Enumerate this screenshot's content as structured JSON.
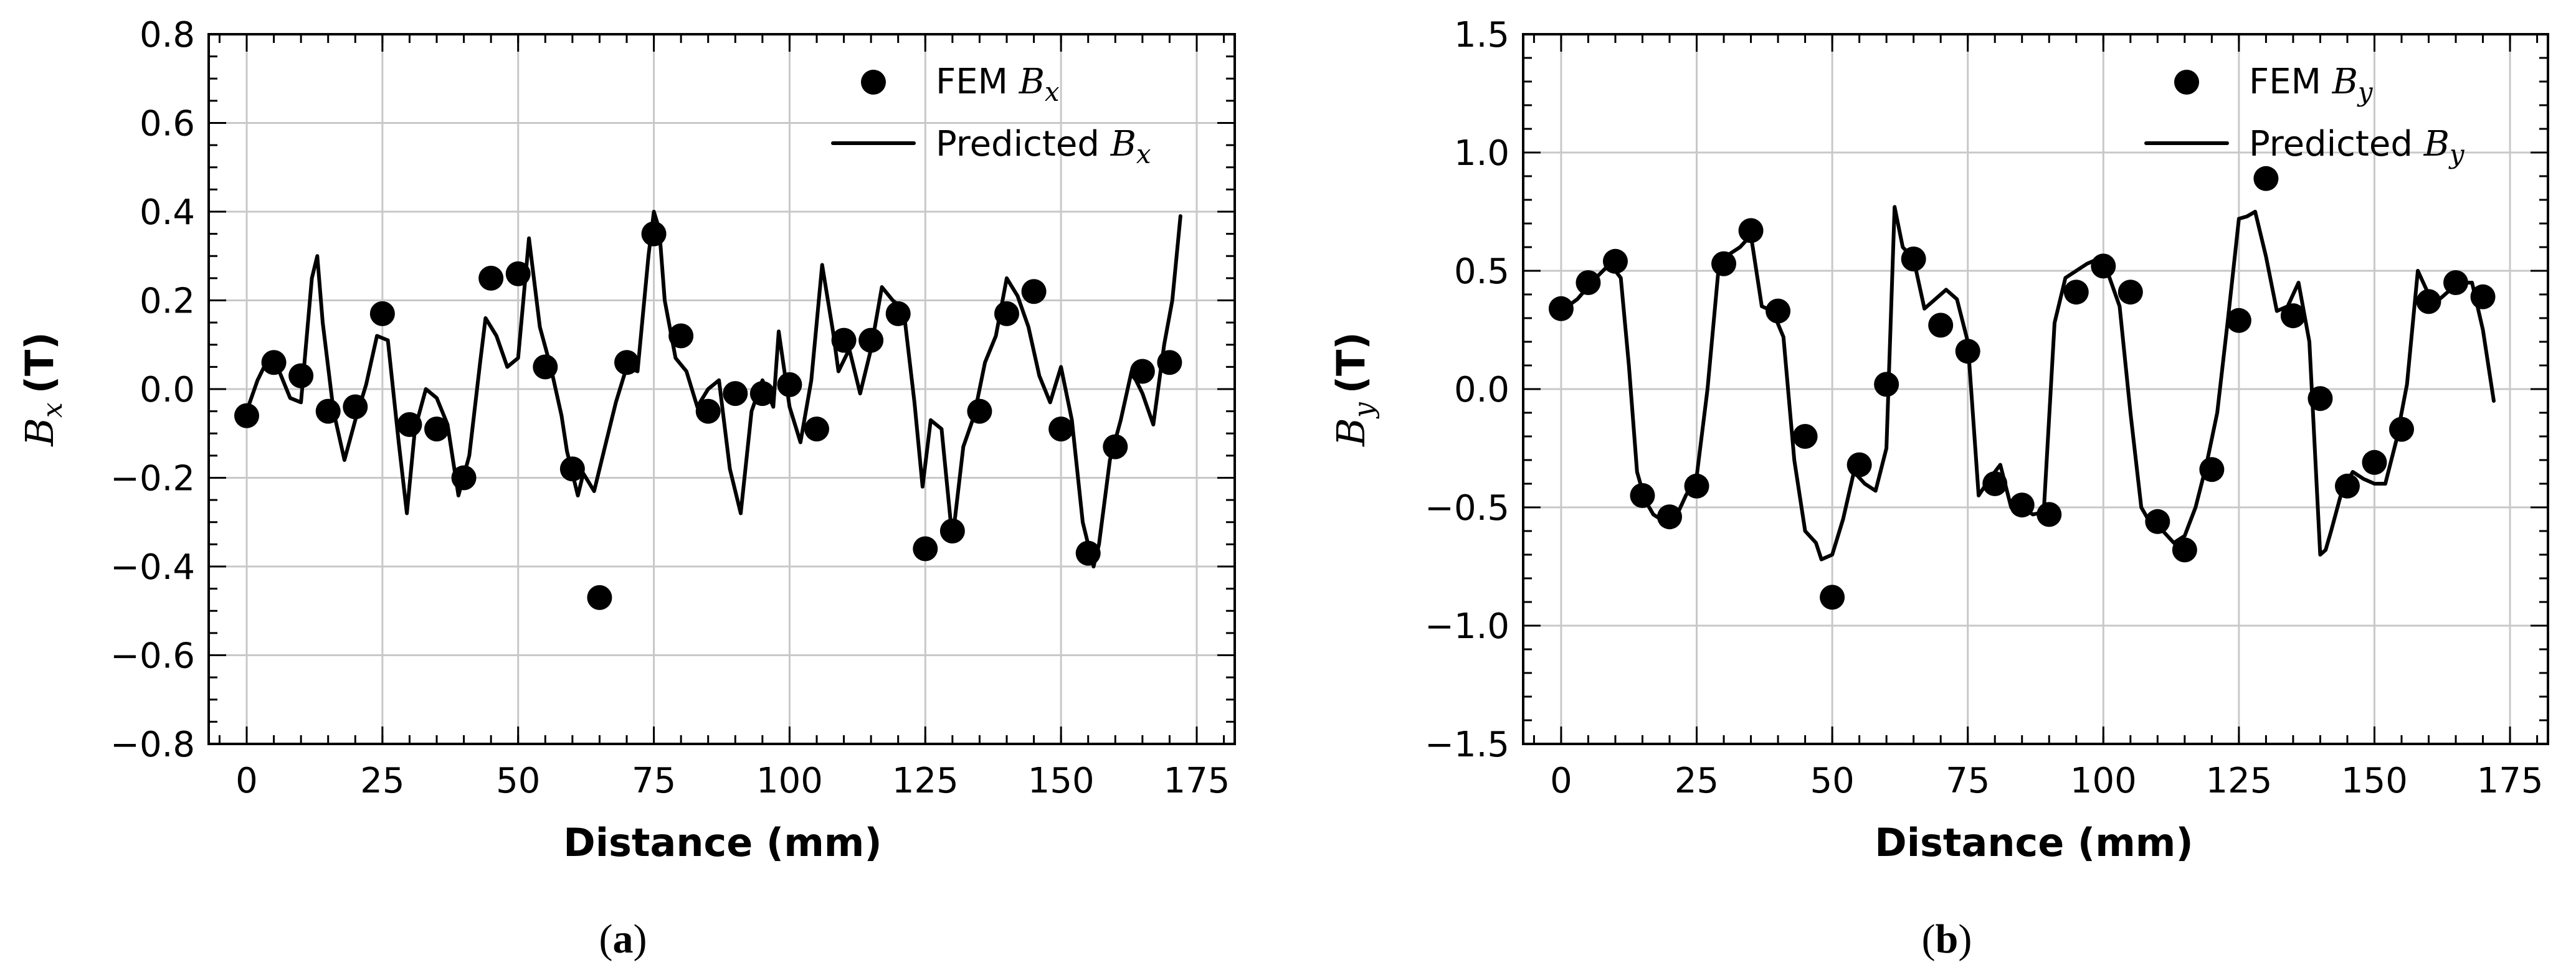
{
  "chart_data": [
    {
      "type": "scatter",
      "panel_label": "a",
      "title": "",
      "xlabel": "Distance (mm)",
      "ylabel_symbol": "B",
      "ylabel_subscript": "x",
      "ylabel_unit": "(T)",
      "xlim": [
        -7,
        182
      ],
      "ylim": [
        -0.8,
        0.8
      ],
      "x_ticks": [
        0,
        25,
        50,
        75,
        100,
        125,
        150,
        175
      ],
      "x_tick_labels": [
        "0",
        "25",
        "50",
        "75",
        "100",
        "125",
        "150",
        "175"
      ],
      "y_ticks": [
        -0.8,
        -0.6,
        -0.4,
        -0.2,
        0.0,
        0.2,
        0.4,
        0.6,
        0.8
      ],
      "y_tick_labels": [
        "−0.8",
        "−0.6",
        "−0.4",
        "−0.2",
        "0.0",
        "0.2",
        "0.4",
        "0.6",
        "0.8"
      ],
      "y_minor_step": 0.05,
      "x_minor_step": 5,
      "grid": true,
      "legend_position": "top-right",
      "series": [
        {
          "name": "FEM Bx",
          "legend_prefix": "FEM ",
          "legend_symbol": "B",
          "legend_subscript": "x",
          "kind": "points",
          "x": [
            0,
            5,
            10,
            15,
            20,
            25,
            30,
            35,
            40,
            45,
            50,
            55,
            60,
            65,
            70,
            75,
            80,
            85,
            90,
            95,
            100,
            105,
            110,
            115,
            120,
            125,
            130,
            135,
            140,
            145,
            150,
            155,
            160,
            165,
            170
          ],
          "y": [
            -0.06,
            0.06,
            0.03,
            -0.05,
            -0.04,
            0.17,
            -0.08,
            -0.09,
            -0.2,
            0.25,
            0.26,
            0.05,
            -0.18,
            -0.47,
            0.06,
            0.35,
            0.12,
            -0.05,
            -0.01,
            -0.01,
            0.01,
            -0.09,
            0.11,
            0.11,
            0.17,
            -0.36,
            -0.32,
            -0.05,
            0.17,
            0.22,
            -0.09,
            -0.37,
            -0.13,
            0.04,
            0.06
          ]
        },
        {
          "name": "Predicted Bx",
          "legend_prefix": "Predicted ",
          "legend_symbol": "B",
          "legend_subscript": "x",
          "kind": "line",
          "x": [
            0,
            2,
            4,
            6,
            8,
            10,
            12,
            13,
            14,
            16,
            18,
            20,
            22,
            24,
            26,
            28,
            29.5,
            31,
            33,
            35,
            37,
            39,
            41,
            43,
            44,
            46,
            48,
            50,
            52,
            54,
            56,
            58,
            59,
            61,
            62,
            64,
            66,
            68,
            70,
            72,
            74,
            75,
            76,
            77,
            79,
            81,
            83,
            85,
            87,
            89,
            91,
            93,
            95,
            97,
            98,
            100,
            102,
            104,
            106,
            108,
            109,
            111,
            113,
            115,
            117,
            119,
            121,
            123,
            124.5,
            126,
            128,
            130,
            132,
            134,
            136,
            138,
            140,
            142,
            144,
            146,
            148,
            150,
            152,
            154,
            156,
            157,
            159,
            161,
            163,
            165,
            167,
            169,
            170.5,
            172
          ],
          "y": [
            -0.05,
            0.02,
            0.07,
            0.04,
            -0.02,
            -0.03,
            0.25,
            0.3,
            0.15,
            -0.05,
            -0.16,
            -0.07,
            0.01,
            0.12,
            0.11,
            -0.12,
            -0.28,
            -0.09,
            0.0,
            -0.02,
            -0.08,
            -0.24,
            -0.15,
            0.06,
            0.16,
            0.12,
            0.05,
            0.07,
            0.34,
            0.14,
            0.05,
            -0.06,
            -0.14,
            -0.24,
            -0.19,
            -0.23,
            -0.13,
            -0.03,
            0.05,
            0.04,
            0.3,
            0.4,
            0.36,
            0.2,
            0.07,
            0.04,
            -0.04,
            0.0,
            0.02,
            -0.18,
            -0.28,
            -0.05,
            0.02,
            -0.04,
            0.13,
            -0.04,
            -0.12,
            0.02,
            0.28,
            0.13,
            0.04,
            0.09,
            -0.01,
            0.09,
            0.23,
            0.2,
            0.18,
            -0.03,
            -0.22,
            -0.07,
            -0.09,
            -0.34,
            -0.13,
            -0.06,
            0.06,
            0.12,
            0.25,
            0.21,
            0.14,
            0.03,
            -0.03,
            0.05,
            -0.07,
            -0.3,
            -0.4,
            -0.35,
            -0.16,
            -0.07,
            0.04,
            -0.01,
            -0.08,
            0.1,
            0.2,
            0.39
          ]
        }
      ]
    },
    {
      "type": "scatter",
      "panel_label": "b",
      "title": "",
      "xlabel": "Distance (mm)",
      "ylabel_symbol": "B",
      "ylabel_subscript": "y",
      "ylabel_unit": "(T)",
      "xlim": [
        -7,
        182
      ],
      "ylim": [
        -1.5,
        1.5
      ],
      "x_ticks": [
        0,
        25,
        50,
        75,
        100,
        125,
        150,
        175
      ],
      "x_tick_labels": [
        "0",
        "25",
        "50",
        "75",
        "100",
        "125",
        "150",
        "175"
      ],
      "y_ticks": [
        -1.5,
        -1.0,
        -0.5,
        0.0,
        0.5,
        1.0,
        1.5
      ],
      "y_tick_labels": [
        "−1.5",
        "−1.0",
        "−0.5",
        "0.0",
        "0.5",
        "1.0",
        "1.5"
      ],
      "y_minor_step": 0.1,
      "x_minor_step": 5,
      "grid": true,
      "legend_position": "top-right",
      "series": [
        {
          "name": "FEM By",
          "legend_prefix": "FEM ",
          "legend_symbol": "B",
          "legend_subscript": "y",
          "kind": "points",
          "x": [
            0,
            5,
            10,
            15,
            20,
            25,
            30,
            35,
            40,
            45,
            50,
            55,
            60,
            65,
            70,
            75,
            80,
            85,
            90,
            95,
            100,
            105,
            110,
            115,
            120,
            125,
            130,
            135,
            140,
            145,
            150,
            155,
            160,
            165,
            170
          ],
          "y": [
            0.34,
            0.45,
            0.54,
            -0.45,
            -0.54,
            -0.41,
            0.53,
            0.67,
            0.33,
            -0.2,
            -0.88,
            -0.32,
            0.02,
            0.55,
            0.27,
            0.16,
            -0.4,
            -0.49,
            -0.53,
            0.41,
            0.52,
            0.41,
            -0.56,
            -0.68,
            -0.34,
            0.29,
            0.89,
            0.31,
            -0.04,
            -0.41,
            -0.31,
            -0.17,
            0.37,
            0.45,
            0.39
          ]
        },
        {
          "name": "Predicted By",
          "legend_prefix": "Predicted ",
          "legend_symbol": "B",
          "legend_subscript": "y",
          "kind": "line",
          "x": [
            0,
            3,
            6,
            9,
            11,
            12.5,
            14,
            15.5,
            17,
            19,
            21,
            23,
            25,
            27,
            29,
            31,
            33,
            35,
            37,
            39,
            41,
            43,
            45,
            47,
            48,
            50,
            52,
            54,
            56,
            58,
            60,
            61.5,
            63,
            65,
            67,
            69,
            71,
            73,
            75,
            77,
            79,
            81,
            83,
            85,
            87,
            89,
            91,
            93,
            95,
            97,
            99,
            101,
            103,
            105,
            107,
            109,
            111,
            113,
            115,
            117,
            119,
            121,
            123,
            125,
            126.5,
            128,
            130,
            132,
            134,
            136,
            138,
            140,
            141,
            142,
            144,
            146,
            148,
            150,
            152,
            154,
            156,
            158,
            160,
            162,
            164,
            166,
            168,
            170,
            172
          ],
          "y": [
            0.33,
            0.38,
            0.46,
            0.53,
            0.47,
            0.1,
            -0.35,
            -0.47,
            -0.53,
            -0.56,
            -0.55,
            -0.45,
            -0.37,
            0.0,
            0.5,
            0.57,
            0.6,
            0.65,
            0.35,
            0.33,
            0.22,
            -0.3,
            -0.6,
            -0.65,
            -0.72,
            -0.7,
            -0.55,
            -0.35,
            -0.4,
            -0.43,
            -0.25,
            0.77,
            0.6,
            0.55,
            0.34,
            0.38,
            0.42,
            0.38,
            0.2,
            -0.45,
            -0.38,
            -0.32,
            -0.5,
            -0.5,
            -0.53,
            -0.52,
            0.28,
            0.47,
            0.5,
            0.53,
            0.55,
            0.48,
            0.35,
            -0.1,
            -0.5,
            -0.58,
            -0.6,
            -0.65,
            -0.62,
            -0.5,
            -0.32,
            -0.1,
            0.3,
            0.72,
            0.73,
            0.75,
            0.56,
            0.33,
            0.35,
            0.45,
            0.2,
            -0.7,
            -0.68,
            -0.6,
            -0.43,
            -0.35,
            -0.38,
            -0.4,
            -0.4,
            -0.22,
            0.02,
            0.5,
            0.4,
            0.38,
            0.42,
            0.45,
            0.45,
            0.25,
            -0.05
          ]
        }
      ]
    }
  ]
}
